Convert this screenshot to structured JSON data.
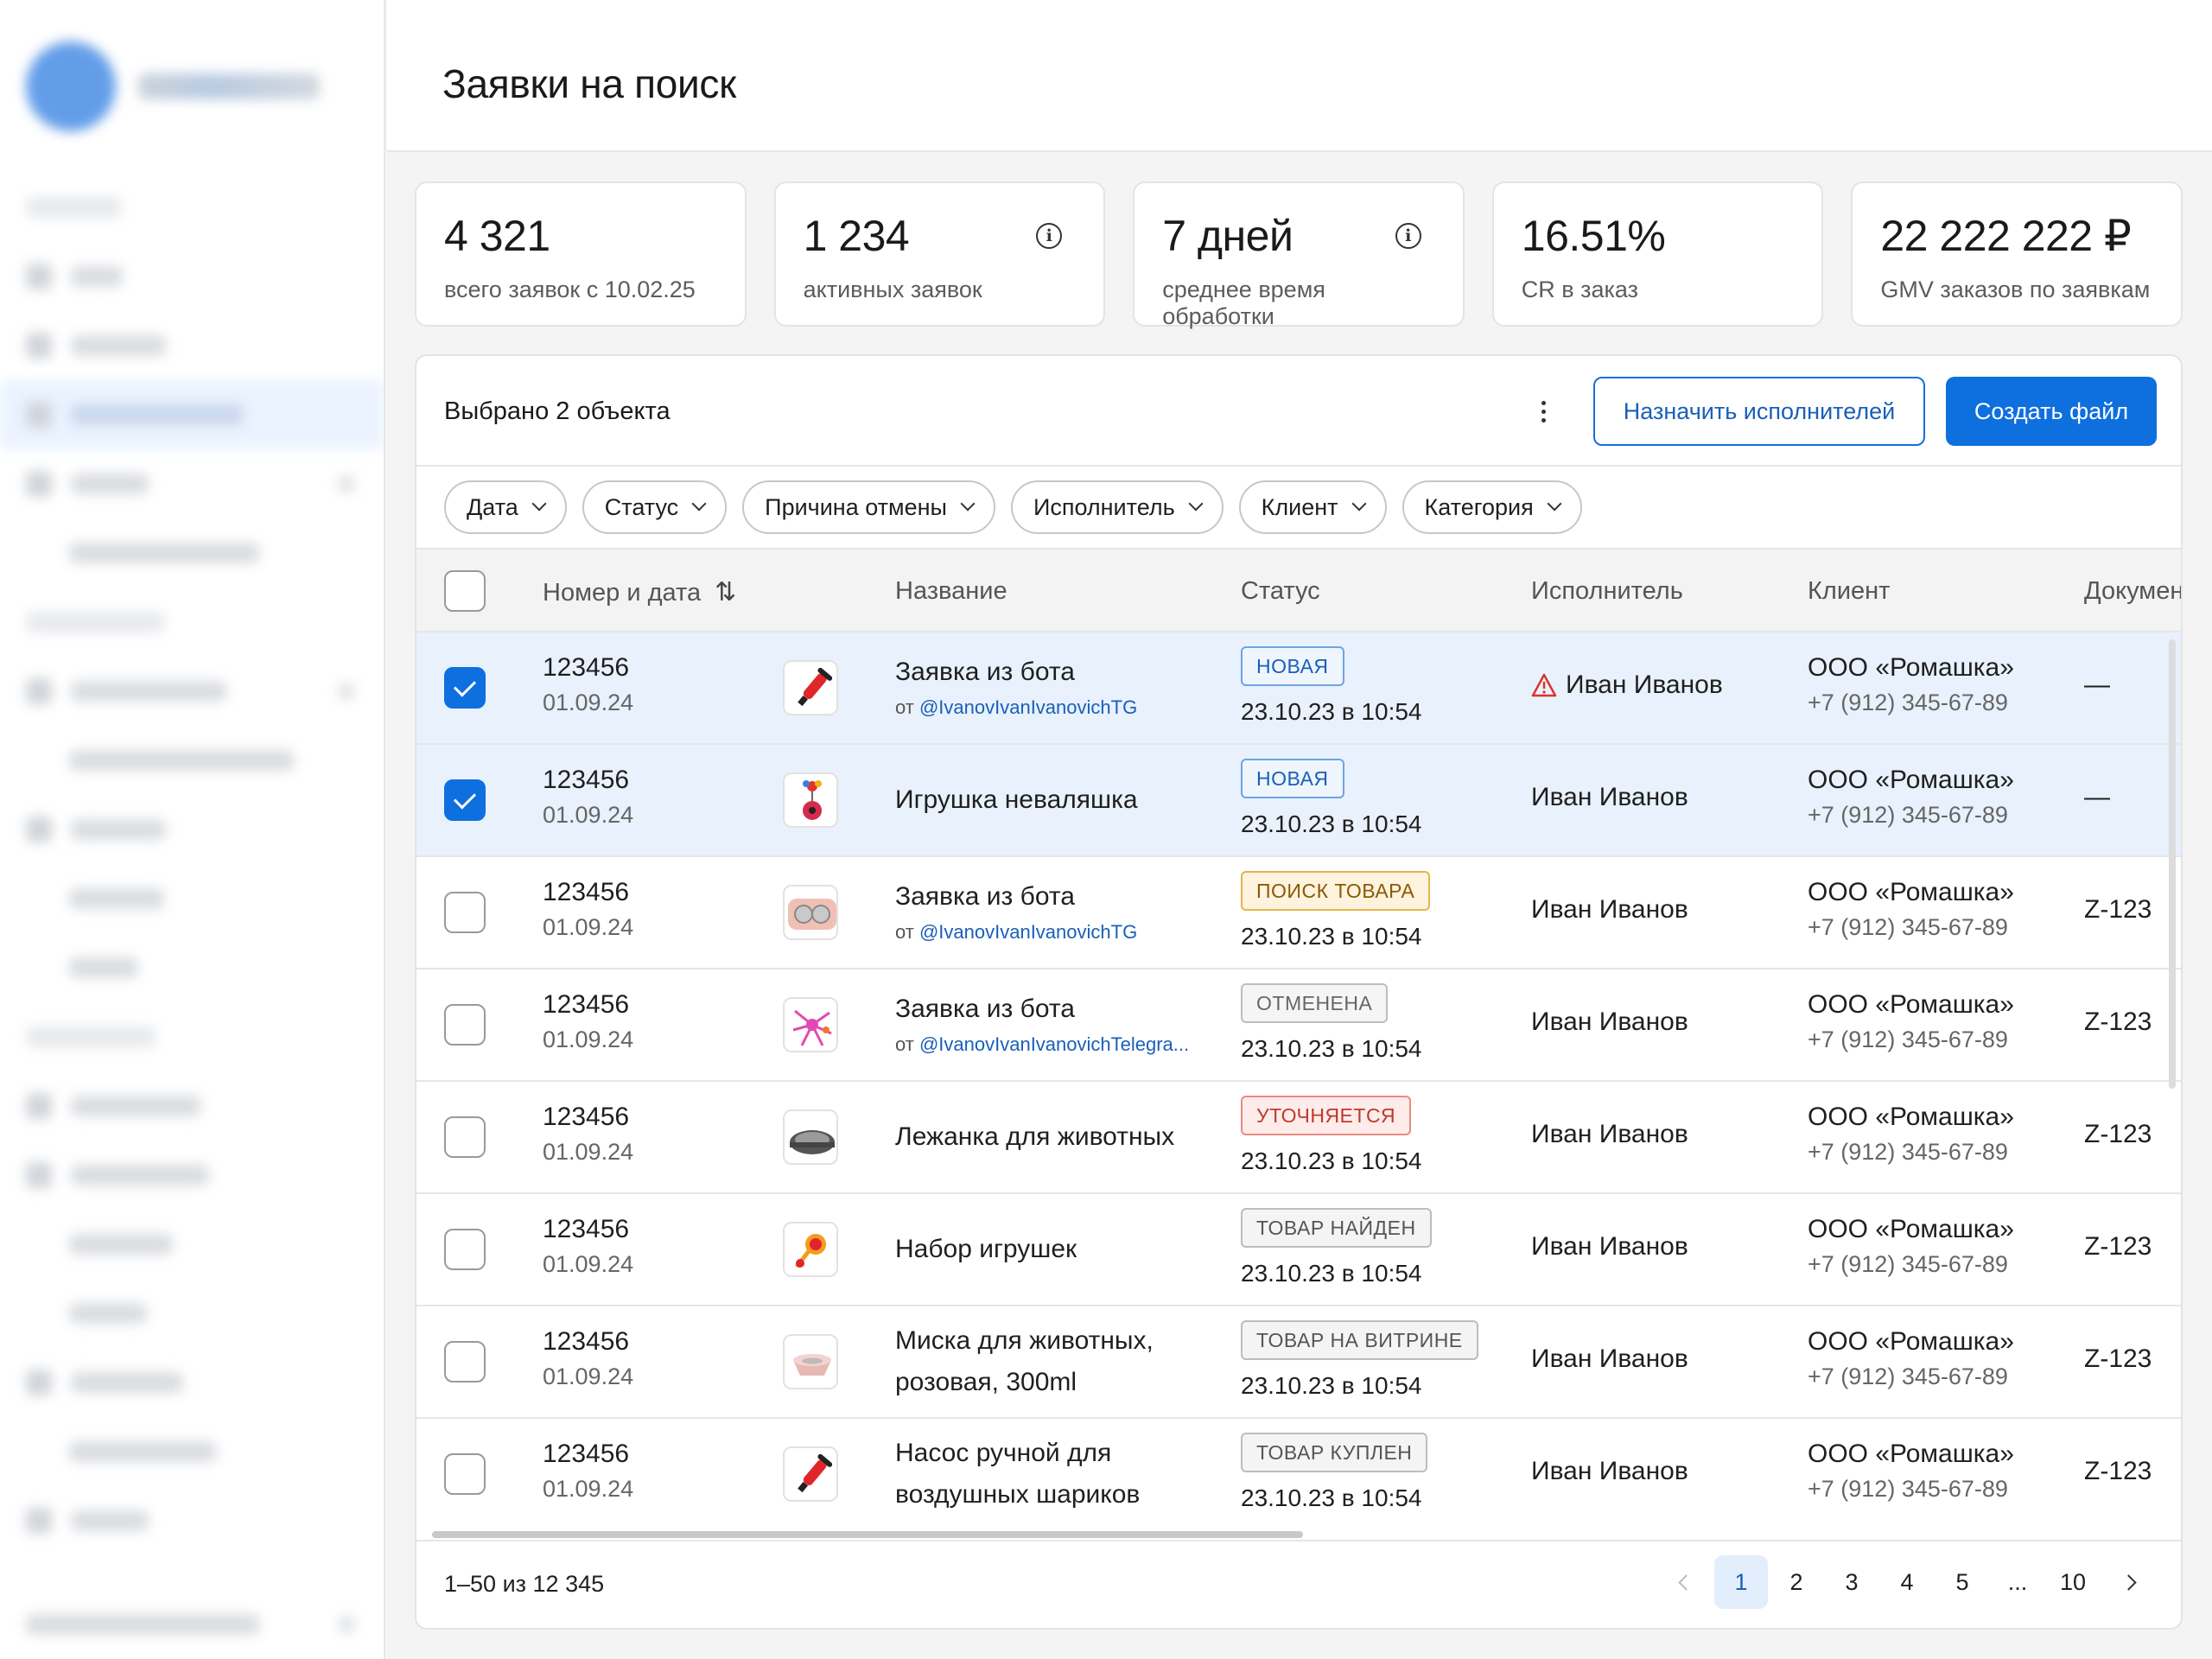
{
  "page": {
    "title": "Заявки на поиск"
  },
  "stats": [
    {
      "value": "4 321",
      "label": "всего заявок с 10.02.25",
      "info": false
    },
    {
      "value": "1 234",
      "label": "активных заявок",
      "info": true
    },
    {
      "value": "7 дней",
      "label": "среднее время обработки",
      "info": true
    },
    {
      "value": "16.51%",
      "label": "CR в заказ",
      "info": false
    },
    {
      "value": "22 222 222 ₽",
      "label": "GMV заказов по заявкам",
      "info": false
    }
  ],
  "toolbar": {
    "selected_text": "Выбрано 2 объекта",
    "assign_label": "Назначить исполнителей",
    "create_label": "Создать файл"
  },
  "filters": [
    "Дата",
    "Статус",
    "Причина отмены",
    "Исполнитель",
    "Клиент",
    "Категория"
  ],
  "table": {
    "columns": {
      "number_date": "Номер и дата",
      "name": "Название",
      "status": "Статус",
      "executor": "Исполнитель",
      "client": "Клиент",
      "documents": "Докумен"
    },
    "rows": [
      {
        "checked": true,
        "number": "123456",
        "date": "01.09.24",
        "thumb": "pump-icon",
        "name": "Заявка из бота",
        "from_prefix": "от",
        "from_handle": "@IvanovIvanIvanovichTG",
        "status": "НОВАЯ",
        "status_kind": "new",
        "status_date": "23.10.23 в 10:54",
        "executor": "Иван Иванов",
        "executor_warning": true,
        "client": "ООО «Ромашка»",
        "phone": "+7 (912) 345-67-89",
        "doc": "—"
      },
      {
        "checked": true,
        "number": "123456",
        "date": "01.09.24",
        "thumb": "tumbler-toy-icon",
        "name": "Игрушка неваляшка",
        "status": "НОВАЯ",
        "status_kind": "new",
        "status_date": "23.10.23 в 10:54",
        "executor": "Иван Иванов",
        "client": "ООО «Ромашка»",
        "phone": "+7 (912) 345-67-89",
        "doc": "—"
      },
      {
        "checked": false,
        "number": "123456",
        "date": "01.09.24",
        "thumb": "pet-bowls-icon",
        "name": "Заявка из бота",
        "from_prefix": "от",
        "from_handle": "@IvanovIvanIvanovichTG",
        "status": "ПОИСК ТОВАРА",
        "status_kind": "search",
        "status_date": "23.10.23 в 10:54",
        "executor": "Иван Иванов",
        "client": "ООО «Ромашка»",
        "phone": "+7 (912) 345-67-89",
        "doc": "Z-123"
      },
      {
        "checked": false,
        "number": "123456",
        "date": "01.09.24",
        "thumb": "octopus-toy-icon",
        "name": "Заявка из бота",
        "from_prefix": "от",
        "from_handle": "@IvanovIvanIvanovichTelegra...",
        "status": "ОТМЕНЕНА",
        "status_kind": "cancel",
        "status_date": "23.10.23 в 10:54",
        "executor": "Иван Иванов",
        "client": "ООО «Ромашка»",
        "phone": "+7 (912) 345-67-89",
        "doc": "Z-123"
      },
      {
        "checked": false,
        "number": "123456",
        "date": "01.09.24",
        "thumb": "pet-bed-icon",
        "name": "Лежанка для животных",
        "status": "УТОЧНЯЕТСЯ",
        "status_kind": "clarify",
        "status_date": "23.10.23 в 10:54",
        "executor": "Иван Иванов",
        "client": "ООО «Ромашка»",
        "phone": "+7 (912) 345-67-89",
        "doc": "Z-123"
      },
      {
        "checked": false,
        "number": "123456",
        "date": "01.09.24",
        "thumb": "toy-set-icon",
        "name": "Набор игрушек",
        "status": "ТОВАР НАЙДЕН",
        "status_kind": "grey",
        "status_date": "23.10.23 в 10:54",
        "executor": "Иван Иванов",
        "client": "ООО «Ромашка»",
        "phone": "+7 (912) 345-67-89",
        "doc": "Z-123"
      },
      {
        "checked": false,
        "number": "123456",
        "date": "01.09.24",
        "thumb": "pink-bowl-icon",
        "name": "Миска для животных, розовая, 300ml",
        "status": "ТОВАР НА ВИТРИНЕ",
        "status_kind": "grey",
        "status_date": "23.10.23 в 10:54",
        "executor": "Иван Иванов",
        "client": "ООО «Ромашка»",
        "phone": "+7 (912) 345-67-89",
        "doc": "Z-123"
      },
      {
        "checked": false,
        "number": "123456",
        "date": "01.09.24",
        "thumb": "pump-icon",
        "name": "Насос ручной для воздушных шариков",
        "status": "ТОВАР КУПЛЕН",
        "status_kind": "grey",
        "status_date": "23.10.23 в 10:54",
        "executor": "Иван Иванов",
        "client": "ООО «Ромашка»",
        "phone": "+7 (912) 345-67-89",
        "doc": "Z-123"
      }
    ]
  },
  "pagination": {
    "range": "1–50 из 12 345",
    "pages": [
      "1",
      "2",
      "3",
      "4",
      "5",
      "...",
      "10"
    ],
    "active": "1"
  }
}
